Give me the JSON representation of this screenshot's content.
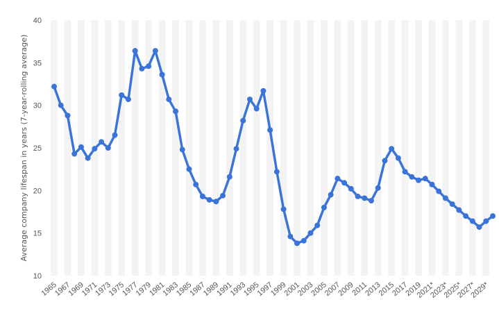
{
  "chart_data": {
    "type": "line",
    "title": "",
    "xlabel": "",
    "ylabel": "Average company lifespan in years (7-year-rolling average)",
    "ylim": [
      10,
      40
    ],
    "yticks": [
      10,
      15,
      20,
      25,
      30,
      35,
      40
    ],
    "grid": "alternating vertical bands",
    "colors": {
      "line": "#3b74d8",
      "band": "#f3f3f3",
      "text": "#555555"
    },
    "x_tick_labels": [
      "1965",
      "1967",
      "1969",
      "1971",
      "1973",
      "1975",
      "1977",
      "1979",
      "1981",
      "1983",
      "1985",
      "1987",
      "1989",
      "1991",
      "1993",
      "1995",
      "1997",
      "1999",
      "2001",
      "2003",
      "2005",
      "2007",
      "2009",
      "2011",
      "2013",
      "2015",
      "2017",
      "2019",
      "2021*",
      "2023*",
      "2025*",
      "2027*",
      "2029*"
    ],
    "x": [
      1965,
      1966,
      1967,
      1968,
      1969,
      1970,
      1971,
      1972,
      1973,
      1974,
      1975,
      1976,
      1977,
      1978,
      1979,
      1980,
      1981,
      1982,
      1983,
      1984,
      1985,
      1986,
      1987,
      1988,
      1989,
      1990,
      1991,
      1992,
      1993,
      1994,
      1995,
      1996,
      1997,
      1998,
      1999,
      2000,
      2001,
      2002,
      2003,
      2004,
      2005,
      2006,
      2007,
      2008,
      2009,
      2010,
      2011,
      2012,
      2013,
      2014,
      2015,
      2016,
      2017,
      2018,
      2019,
      2020,
      2021,
      2022,
      2023,
      2024,
      2025,
      2026,
      2027,
      2028,
      2029,
      2030
    ],
    "series": [
      {
        "values": [
          32.2,
          30.0,
          28.8,
          24.3,
          25.1,
          23.8,
          24.9,
          25.7,
          25.0,
          26.5,
          31.2,
          30.7,
          36.4,
          34.3,
          34.6,
          36.4,
          33.6,
          30.7,
          29.3,
          24.8,
          22.5,
          20.7,
          19.3,
          18.9,
          18.7,
          19.4,
          21.6,
          24.9,
          28.2,
          30.7,
          29.6,
          31.7,
          27.1,
          22.2,
          17.8,
          14.6,
          13.8,
          14.1,
          15.0,
          15.9,
          18.0,
          19.5,
          21.4,
          20.9,
          20.2,
          19.3,
          19.1,
          18.8,
          20.3,
          23.5,
          24.9,
          23.8,
          22.2,
          21.6,
          21.2,
          21.4,
          20.7,
          19.9,
          19.1,
          18.4,
          17.7,
          17.0,
          16.4,
          15.7,
          16.4,
          17.0
        ]
      }
    ]
  }
}
